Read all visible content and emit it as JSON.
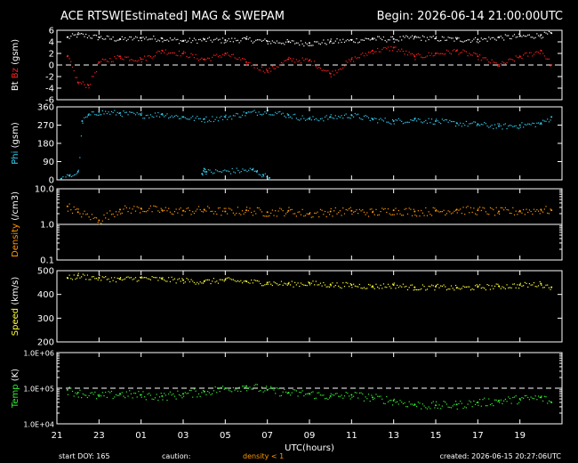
{
  "header": {
    "title": "ACE RTSW[Estimated] MAG & SWEPAM",
    "begin": "Begin: 2026-06-14 21:00:00UTC"
  },
  "footer": {
    "start_doy": "start DOY: 165",
    "caution_label": "caution:",
    "caution_value": "density < 1",
    "created": "created: 2026-06-15 20:27:06UTC"
  },
  "colors": {
    "bt": "#ffffff",
    "bz": "#ff2020",
    "phi": "#33ccee",
    "density": "#ff9900",
    "speed": "#ffff33",
    "temp": "#33ee33",
    "axis": "#ffffff",
    "caution": "#ff9900"
  },
  "chart_data": {
    "type": "scatter",
    "xlabel": "UTC(hours)",
    "x_ticks": [
      "21",
      "23",
      "01",
      "03",
      "05",
      "07",
      "09",
      "11",
      "13",
      "15",
      "17",
      "19"
    ],
    "x_range_hours": [
      0,
      24
    ],
    "panels": [
      {
        "id": "bz",
        "ylabel_parts": [
          {
            "text": "Bt",
            "color": "#ffffff"
          },
          {
            "text": "Bz",
            "color": "#ff2020"
          },
          {
            "text": "(gsm)",
            "color": "#ffffff"
          }
        ],
        "ylim": [
          -6,
          6
        ],
        "yticks": [
          "6",
          "4",
          "2",
          "0",
          "-2",
          "-4",
          "-6"
        ],
        "yticks_values": [
          6,
          4,
          2,
          0,
          -2,
          -4,
          -6
        ],
        "scale": "linear",
        "ref_line": 0,
        "series": [
          {
            "name": "Bt",
            "color": "#ffffff",
            "x": [
              0.5,
              1,
              2,
              3,
              4,
              5,
              6,
              7,
              8,
              9,
              10,
              11,
              12,
              13,
              14,
              15,
              16,
              17,
              18,
              19,
              20,
              21,
              22,
              23,
              23.5
            ],
            "y": [
              4.8,
              5.3,
              4.8,
              4.5,
              4.7,
              4.6,
              4.2,
              4.4,
              4.3,
              4.5,
              4.1,
              4.0,
              3.8,
              4.1,
              4.3,
              4.6,
              4.5,
              4.8,
              4.6,
              4.5,
              4.4,
              4.8,
              5.0,
              5.2,
              5.5
            ]
          },
          {
            "name": "Bz",
            "color": "#ff2020",
            "x": [
              0.5,
              1,
              1.5,
              2,
              3,
              4,
              5,
              6,
              7,
              8,
              9,
              10,
              11,
              12,
              13,
              14,
              15,
              16,
              17,
              18,
              19,
              20,
              21,
              22,
              23,
              23.5
            ],
            "y": [
              1.5,
              -3.0,
              -3.5,
              0.5,
              1.5,
              1.0,
              2.5,
              2.0,
              1.0,
              2.0,
              0.5,
              -1.0,
              1.0,
              0.8,
              -1.5,
              1.0,
              2.5,
              3.0,
              1.5,
              2.0,
              2.5,
              1.5,
              0.0,
              1.5,
              2.5,
              0.0
            ]
          }
        ]
      },
      {
        "id": "phi",
        "ylabel_parts": [
          {
            "text": "Phi",
            "color": "#33ccee"
          },
          {
            "text": "(gsm)",
            "color": "#ffffff"
          }
        ],
        "ylim": [
          0,
          360
        ],
        "yticks": [
          "360",
          "270",
          "180",
          "90",
          "0"
        ],
        "yticks_values": [
          360,
          270,
          180,
          90,
          0
        ],
        "scale": "linear",
        "series": [
          {
            "name": "Phi",
            "color": "#33ccee",
            "x": [
              0.2,
              0.6,
              1.0,
              1.2,
              1.5,
              2,
              3,
              4,
              5,
              6,
              7,
              8,
              9,
              10,
              11,
              12,
              13,
              14,
              15,
              16,
              17,
              18,
              19,
              20,
              21,
              22,
              23,
              23.5
            ],
            "y": [
              5,
              20,
              40,
              290,
              320,
              335,
              330,
              320,
              325,
              310,
              300,
              310,
              330,
              340,
              320,
              300,
              310,
              320,
              300,
              290,
              300,
              290,
              280,
              275,
              265,
              270,
              280,
              310
            ]
          },
          {
            "name": "Phi-low",
            "color": "#33ccee",
            "x": [
              6.9,
              7.0,
              7.1,
              9.3,
              9.5,
              9.8,
              10.1
            ],
            "y": [
              30,
              55,
              40,
              50,
              40,
              25,
              10
            ]
          }
        ]
      },
      {
        "id": "density",
        "ylabel_parts": [
          {
            "text": "Density",
            "color": "#ff9900"
          },
          {
            "text": "(/cm3)",
            "color": "#ffffff"
          }
        ],
        "ylim": [
          0.1,
          10
        ],
        "yticks": [
          "10.0",
          "1.0",
          "0.1"
        ],
        "yticks_values": [
          10,
          1,
          0.1
        ],
        "scale": "log",
        "series": [
          {
            "name": "Density",
            "color": "#ff9900",
            "x": [
              0.5,
              1,
              2,
              3,
              4,
              5,
              6,
              7,
              8,
              9,
              10,
              11,
              12,
              13,
              14,
              15,
              16,
              17,
              18,
              19,
              20,
              21,
              22,
              23,
              23.5
            ],
            "y": [
              3.2,
              2.2,
              1.3,
              2.6,
              2.8,
              2.5,
              2.4,
              2.6,
              2.3,
              2.5,
              2.2,
              2.4,
              2.0,
              2.3,
              2.4,
              2.2,
              2.5,
              2.3,
              2.4,
              2.6,
              2.5,
              2.3,
              2.4,
              2.6,
              2.5
            ]
          }
        ]
      },
      {
        "id": "speed",
        "ylabel_parts": [
          {
            "text": "Speed",
            "color": "#ffff33"
          },
          {
            "text": "(km/s)",
            "color": "#ffffff"
          }
        ],
        "ylim": [
          200,
          500
        ],
        "yticks": [
          "500",
          "400",
          "300",
          "200"
        ],
        "yticks_values": [
          500,
          400,
          300,
          200
        ],
        "scale": "linear",
        "series": [
          {
            "name": "Speed",
            "color": "#ffff33",
            "x": [
              0.5,
              1,
              2,
              3,
              4,
              5,
              6,
              7,
              8,
              9,
              10,
              11,
              12,
              13,
              14,
              15,
              16,
              17,
              18,
              19,
              20,
              21,
              22,
              23,
              23.5
            ],
            "y": [
              470,
              480,
              470,
              465,
              470,
              465,
              460,
              455,
              462,
              455,
              450,
              445,
              448,
              442,
              440,
              435,
              440,
              430,
              433,
              428,
              432,
              435,
              440,
              445,
              430
            ]
          }
        ]
      },
      {
        "id": "temp",
        "ylabel_parts": [
          {
            "text": "Temp",
            "color": "#33ee33"
          },
          {
            "text": "(K)",
            "color": "#ffffff"
          }
        ],
        "ylim": [
          10000,
          1000000
        ],
        "yticks": [
          "1.0E+06",
          "1.0E+05",
          "1.0E+04"
        ],
        "yticks_values": [
          1000000,
          100000,
          10000
        ],
        "scale": "log",
        "ref_line": 100000,
        "series": [
          {
            "name": "Temp",
            "color": "#33ee33",
            "x": [
              0.5,
              1,
              2,
              3,
              4,
              5,
              6,
              7,
              8,
              9,
              10,
              11,
              12,
              13,
              14,
              15,
              16,
              17,
              18,
              19,
              20,
              21,
              22,
              23,
              23.5
            ],
            "y": [
              90000,
              75000,
              60000,
              70000,
              65000,
              60000,
              70000,
              80000,
              100000,
              115000,
              90000,
              75000,
              70000,
              60000,
              65000,
              55000,
              45000,
              35000,
              33000,
              35000,
              40000,
              45000,
              50000,
              55000,
              40000
            ]
          }
        ]
      }
    ]
  }
}
